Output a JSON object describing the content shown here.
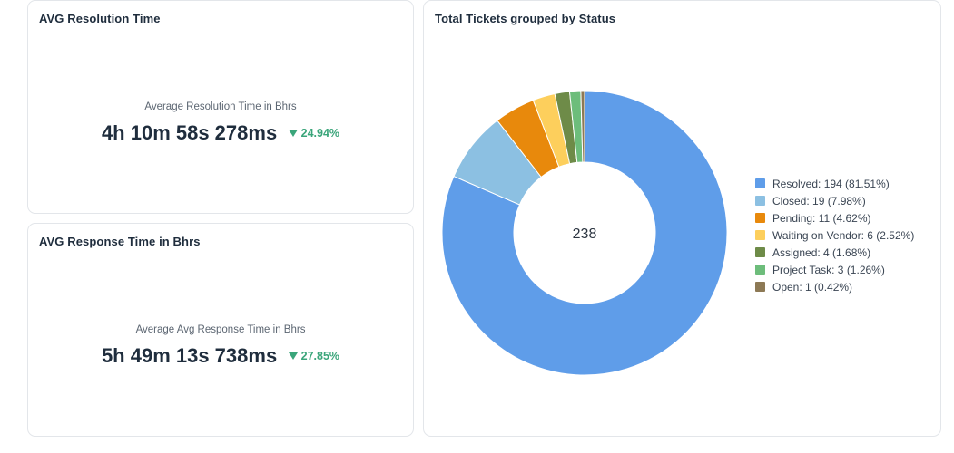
{
  "resolution_card": {
    "title": "AVG Resolution Time",
    "subtitle": "Average Resolution Time in Bhrs",
    "value": "4h 10m 58s 278ms",
    "change": "24.94%",
    "change_icon": "triangle-down-icon"
  },
  "response_card": {
    "title": "AVG Response Time in Bhrs",
    "subtitle": "Average Avg Response Time in Bhrs",
    "value": "5h 49m 13s 738ms",
    "change": "27.85%",
    "change_icon": "triangle-down-icon"
  },
  "status_card": {
    "title": "Total Tickets grouped by Status",
    "total": "238"
  },
  "chart_data": {
    "type": "pie",
    "donut": true,
    "center_label": "238",
    "legend_position": "right",
    "series": [
      {
        "label": "Resolved: 194 (81.51%)",
        "value": 194,
        "color": "#5f9de9"
      },
      {
        "label": "Closed: 19 (7.98%)",
        "value": 19,
        "color": "#8cc0e2"
      },
      {
        "label": "Pending: 11 (4.62%)",
        "value": 11,
        "color": "#e8890c"
      },
      {
        "label": "Waiting on Vendor: 6 (2.52%)",
        "value": 6,
        "color": "#fdcf5c"
      },
      {
        "label": "Assigned: 4 (1.68%)",
        "value": 4,
        "color": "#6e8b48"
      },
      {
        "label": "Project Task: 3 (1.26%)",
        "value": 3,
        "color": "#6dbd7b"
      },
      {
        "label": "Open: 1 (0.42%)",
        "value": 1,
        "color": "#8d7955"
      }
    ]
  },
  "colors": {
    "positive_change": "#3aa57a",
    "card_border": "#e3e6ea",
    "title_text": "#1f2d3d"
  }
}
